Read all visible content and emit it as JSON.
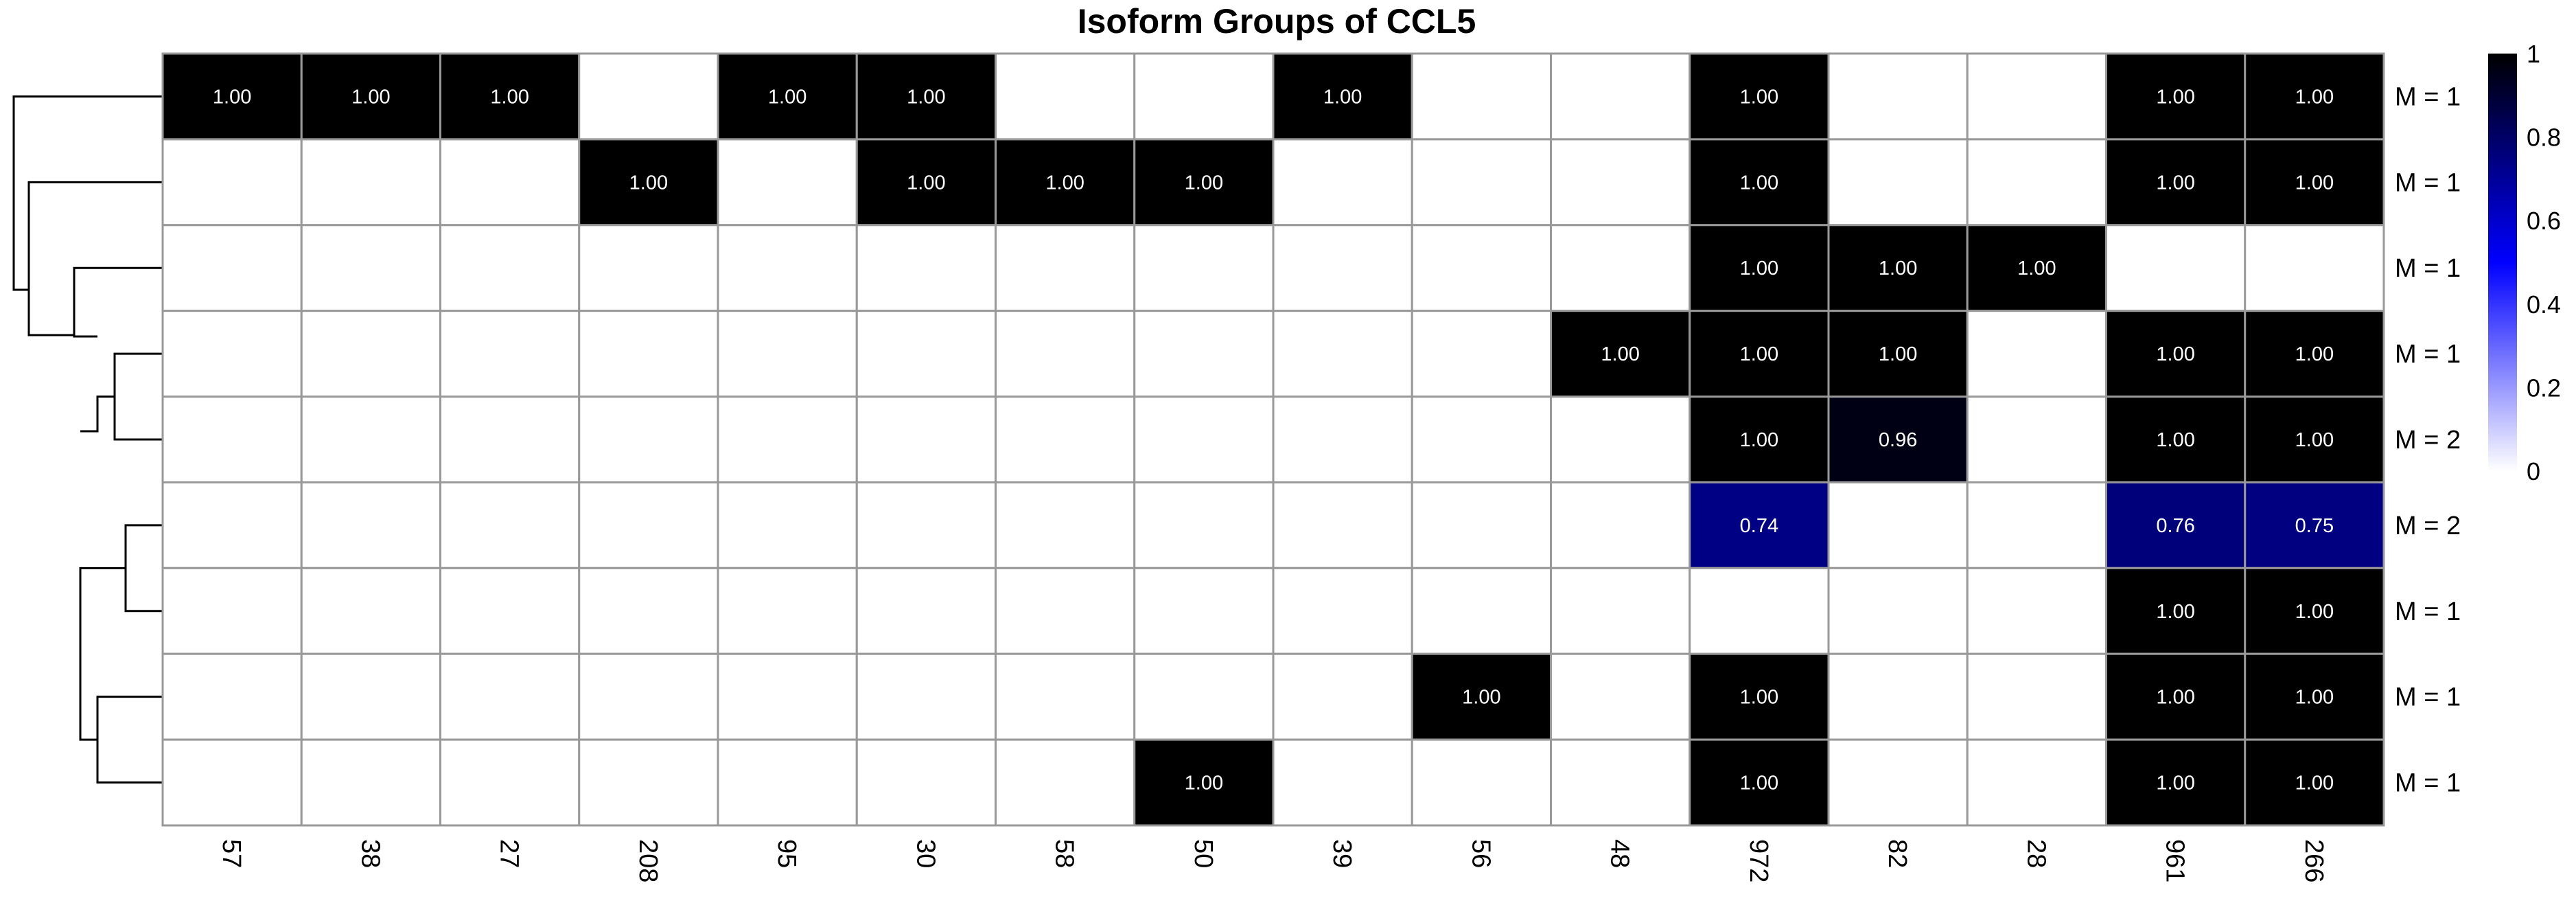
{
  "chart_data": {
    "type": "heatmap",
    "title": "Isoform Groups of CCL5",
    "columns": [
      "57",
      "38",
      "27",
      "208",
      "95",
      "30",
      "58",
      "50",
      "39",
      "56",
      "48",
      "972",
      "82",
      "28",
      "961",
      "266"
    ],
    "rows": [
      "M = 1",
      "M = 1",
      "M = 1",
      "M = 1",
      "M = 2",
      "M = 2",
      "M = 1",
      "M = 1",
      "M = 1"
    ],
    "values": [
      [
        1.0,
        1.0,
        1.0,
        null,
        1.0,
        1.0,
        null,
        null,
        1.0,
        null,
        null,
        1.0,
        null,
        null,
        1.0,
        1.0
      ],
      [
        null,
        null,
        null,
        1.0,
        null,
        1.0,
        1.0,
        1.0,
        null,
        null,
        null,
        1.0,
        null,
        null,
        1.0,
        1.0
      ],
      [
        null,
        null,
        null,
        null,
        null,
        null,
        null,
        null,
        null,
        null,
        null,
        1.0,
        1.0,
        1.0,
        null,
        null
      ],
      [
        null,
        null,
        null,
        null,
        null,
        null,
        null,
        null,
        null,
        null,
        1.0,
        1.0,
        1.0,
        null,
        1.0,
        1.0
      ],
      [
        null,
        null,
        null,
        null,
        null,
        null,
        null,
        null,
        null,
        null,
        null,
        1.0,
        0.96,
        null,
        1.0,
        1.0
      ],
      [
        null,
        null,
        null,
        null,
        null,
        null,
        null,
        null,
        null,
        null,
        null,
        0.74,
        null,
        null,
        0.76,
        0.75
      ],
      [
        null,
        null,
        null,
        null,
        null,
        null,
        null,
        null,
        null,
        null,
        null,
        null,
        null,
        null,
        1.0,
        1.0
      ],
      [
        null,
        null,
        null,
        null,
        null,
        null,
        null,
        null,
        null,
        1.0,
        null,
        1.0,
        null,
        null,
        1.0,
        1.0
      ],
      [
        null,
        null,
        null,
        null,
        null,
        null,
        null,
        1.0,
        null,
        null,
        null,
        1.0,
        null,
        null,
        1.0,
        1.0
      ]
    ],
    "value_range": [
      0,
      1
    ],
    "legend": {
      "ticks": [
        "1",
        "0.8",
        "0.6",
        "0.4",
        "0.2",
        "0"
      ],
      "placement": "right"
    },
    "color_scale": [
      "#ffffff",
      "#0000ff",
      "#000000"
    ],
    "grid_color": "#999999",
    "cell_text_color": "#ffffff"
  }
}
